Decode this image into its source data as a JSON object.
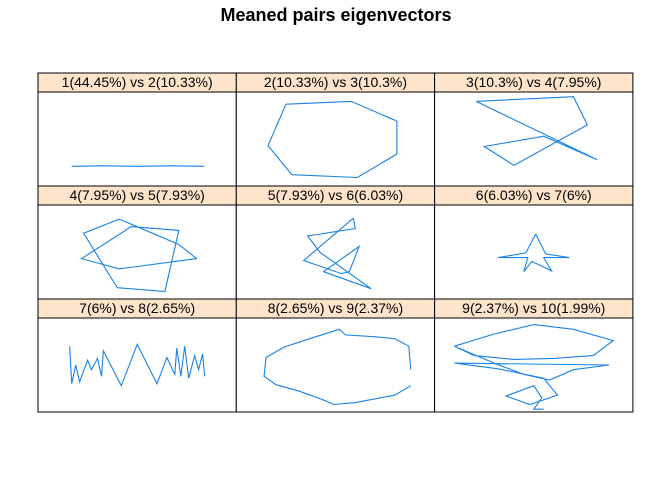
{
  "title": "Meaned pairs eigenvectors",
  "colors": {
    "line": "#1a83e5",
    "strip": "#ffe4cc",
    "border": "#000000",
    "background": "#ffffff"
  },
  "chart_data": {
    "type": "line",
    "title": "Meaned pairs eigenvectors",
    "layout": {
      "rows": 3,
      "cols": 3
    },
    "panels": [
      {
        "label": "1(44.45%) vs 2(10.33%)",
        "points": [
          [
            0.17,
            0.79
          ],
          [
            0.32,
            0.785
          ],
          [
            0.5,
            0.79
          ],
          [
            0.67,
            0.785
          ],
          [
            0.84,
            0.79
          ]
        ]
      },
      {
        "label": "2(10.33%) vs 3(10.3%)",
        "points": [
          [
            0.25,
            0.13
          ],
          [
            0.58,
            0.1
          ],
          [
            0.81,
            0.31
          ],
          [
            0.81,
            0.66
          ],
          [
            0.61,
            0.91
          ],
          [
            0.28,
            0.88
          ],
          [
            0.16,
            0.57
          ],
          [
            0.25,
            0.13
          ]
        ]
      },
      {
        "label": "3(10.3%) vs 4(7.95%)",
        "points": [
          [
            0.21,
            0.1
          ],
          [
            0.7,
            0.05
          ],
          [
            0.77,
            0.35
          ],
          [
            0.4,
            0.78
          ],
          [
            0.25,
            0.58
          ],
          [
            0.55,
            0.47
          ],
          [
            0.82,
            0.72
          ],
          [
            0.21,
            0.1
          ]
        ]
      },
      {
        "label": "4(7.95%) vs 5(7.93%)",
        "points": [
          [
            0.41,
            0.15
          ],
          [
            0.71,
            0.42
          ],
          [
            0.8,
            0.57
          ],
          [
            0.41,
            0.68
          ],
          [
            0.22,
            0.57
          ],
          [
            0.47,
            0.23
          ],
          [
            0.71,
            0.27
          ],
          [
            0.64,
            0.92
          ],
          [
            0.4,
            0.88
          ],
          [
            0.23,
            0.3
          ],
          [
            0.41,
            0.15
          ]
        ]
      },
      {
        "label": "5(7.93%) vs 6(6.03%)",
        "points": [
          [
            0.59,
            0.14
          ],
          [
            0.34,
            0.59
          ],
          [
            0.53,
            0.73
          ],
          [
            0.57,
            0.71
          ],
          [
            0.62,
            0.44
          ],
          [
            0.44,
            0.71
          ],
          [
            0.68,
            0.89
          ],
          [
            0.42,
            0.5
          ],
          [
            0.36,
            0.33
          ],
          [
            0.6,
            0.25
          ],
          [
            0.59,
            0.14
          ]
        ]
      },
      {
        "label": "6(6.03%) vs 7(6%)",
        "points": [
          [
            0.51,
            0.31
          ],
          [
            0.56,
            0.52
          ],
          [
            0.68,
            0.56
          ],
          [
            0.55,
            0.56
          ],
          [
            0.59,
            0.7
          ],
          [
            0.49,
            0.6
          ],
          [
            0.45,
            0.71
          ],
          [
            0.47,
            0.56
          ],
          [
            0.32,
            0.56
          ],
          [
            0.46,
            0.51
          ],
          [
            0.51,
            0.31
          ]
        ]
      },
      {
        "label": "7(6%) vs 8(2.65%)",
        "points": [
          [
            0.16,
            0.3
          ],
          [
            0.17,
            0.7
          ],
          [
            0.19,
            0.5
          ],
          [
            0.21,
            0.68
          ],
          [
            0.25,
            0.45
          ],
          [
            0.27,
            0.55
          ],
          [
            0.3,
            0.43
          ],
          [
            0.32,
            0.62
          ],
          [
            0.33,
            0.35
          ],
          [
            0.42,
            0.72
          ],
          [
            0.5,
            0.28
          ],
          [
            0.6,
            0.7
          ],
          [
            0.65,
            0.42
          ],
          [
            0.69,
            0.6
          ],
          [
            0.7,
            0.32
          ],
          [
            0.72,
            0.62
          ],
          [
            0.74,
            0.3
          ],
          [
            0.76,
            0.64
          ],
          [
            0.79,
            0.4
          ],
          [
            0.81,
            0.55
          ],
          [
            0.83,
            0.38
          ],
          [
            0.84,
            0.62
          ]
        ]
      },
      {
        "label": "8(2.65%) vs 9(2.37%)",
        "points": [
          [
            0.88,
            0.55
          ],
          [
            0.87,
            0.3
          ],
          [
            0.8,
            0.22
          ],
          [
            0.7,
            0.2
          ],
          [
            0.55,
            0.18
          ],
          [
            0.52,
            0.12
          ],
          [
            0.37,
            0.22
          ],
          [
            0.24,
            0.31
          ],
          [
            0.15,
            0.42
          ],
          [
            0.14,
            0.62
          ],
          [
            0.2,
            0.71
          ],
          [
            0.32,
            0.78
          ],
          [
            0.45,
            0.88
          ],
          [
            0.49,
            0.92
          ],
          [
            0.6,
            0.9
          ],
          [
            0.8,
            0.82
          ],
          [
            0.88,
            0.72
          ]
        ]
      },
      {
        "label": "9(2.37%) vs 10(1.99%)",
        "points": [
          [
            0.1,
            0.3
          ],
          [
            0.3,
            0.17
          ],
          [
            0.5,
            0.07
          ],
          [
            0.7,
            0.12
          ],
          [
            0.9,
            0.24
          ],
          [
            0.8,
            0.4
          ],
          [
            0.6,
            0.43
          ],
          [
            0.4,
            0.44
          ],
          [
            0.2,
            0.4
          ],
          [
            0.1,
            0.3
          ],
          [
            0.3,
            0.48
          ],
          [
            0.45,
            0.6
          ],
          [
            0.58,
            0.66
          ],
          [
            0.7,
            0.55
          ],
          [
            0.88,
            0.5
          ],
          [
            0.1,
            0.48
          ],
          [
            0.32,
            0.54
          ],
          [
            0.55,
            0.64
          ],
          [
            0.62,
            0.82
          ],
          [
            0.48,
            0.92
          ],
          [
            0.36,
            0.83
          ],
          [
            0.5,
            0.72
          ],
          [
            0.54,
            0.85
          ],
          [
            0.5,
            0.97
          ],
          [
            0.55,
            0.97
          ]
        ]
      }
    ]
  }
}
